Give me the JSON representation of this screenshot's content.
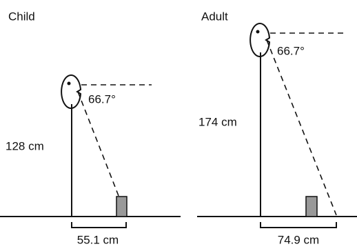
{
  "panels": [
    {
      "title": "Child",
      "height_label": "128 cm",
      "angle_label": "66.7°",
      "distance_label": "55.1 cm"
    },
    {
      "title": "Adult",
      "height_label": "174 cm",
      "angle_label": "66.7°",
      "distance_label": "74.9 cm"
    }
  ]
}
